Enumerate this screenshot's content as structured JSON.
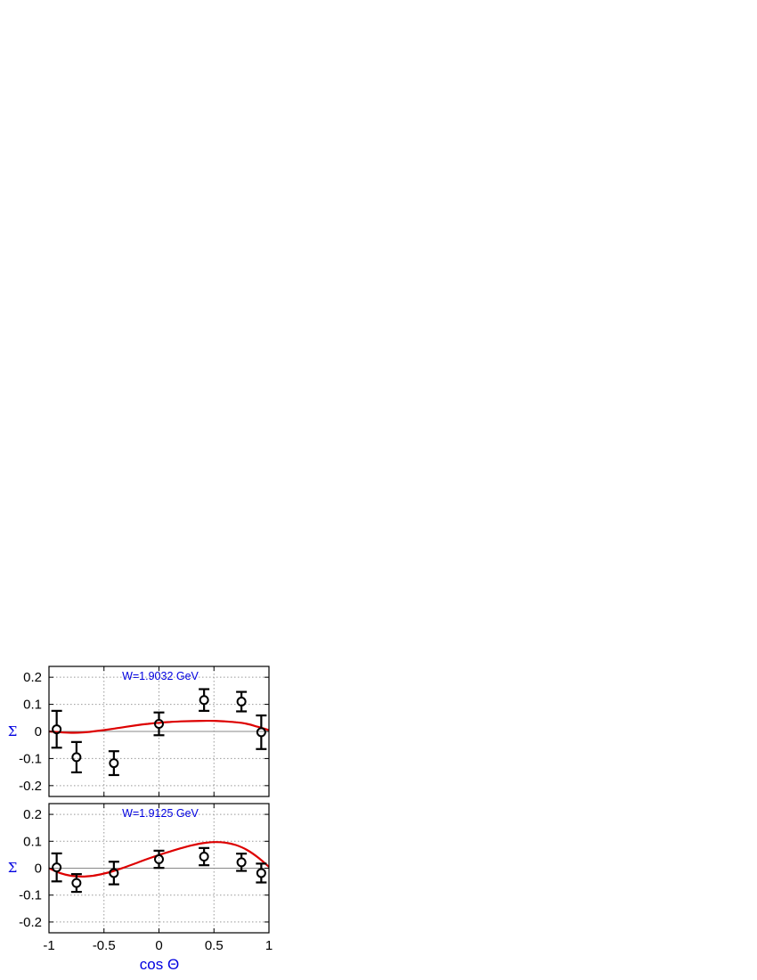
{
  "chart_data": [
    {
      "type": "scatter",
      "annotation": "W=1.9032 GeV",
      "xlabel": "cos Θ",
      "ylabel": "Σ",
      "xlim": [
        -1,
        1
      ],
      "ylim": [
        -0.24,
        0.24
      ],
      "xticks": [
        "-1",
        "-0.5",
        "0",
        "0.5",
        "1"
      ],
      "yticks": [
        "0.2",
        "0.1",
        "0",
        "-0.1",
        "-0.2"
      ],
      "grid": true,
      "series": [
        {
          "kind": "data-with-errors",
          "points": [
            {
              "x": -0.93,
              "y": 0.008,
              "err": 0.068
            },
            {
              "x": -0.75,
              "y": -0.095,
              "err": 0.056
            },
            {
              "x": -0.41,
              "y": -0.117,
              "err": 0.044
            },
            {
              "x": 0.0,
              "y": 0.028,
              "err": 0.042
            },
            {
              "x": 0.41,
              "y": 0.116,
              "err": 0.04
            },
            {
              "x": 0.75,
              "y": 0.11,
              "err": 0.036
            },
            {
              "x": 0.93,
              "y": -0.003,
              "err": 0.062
            }
          ]
        },
        {
          "kind": "fit-curve",
          "color": "#dd0000",
          "x": [
            -1,
            -0.9,
            -0.8,
            -0.7,
            -0.6,
            -0.5,
            -0.4,
            -0.3,
            -0.2,
            -0.1,
            0,
            0.1,
            0.2,
            0.3,
            0.4,
            0.5,
            0.6,
            0.7,
            0.8,
            0.9,
            1
          ],
          "y": [
            0.0,
            -0.003,
            -0.005,
            -0.004,
            0.0,
            0.005,
            0.011,
            0.017,
            0.023,
            0.028,
            0.032,
            0.035,
            0.037,
            0.038,
            0.039,
            0.039,
            0.037,
            0.034,
            0.028,
            0.017,
            0.005
          ]
        }
      ]
    },
    {
      "type": "scatter",
      "annotation": "W=1.9125 GeV",
      "xlabel": "cos Θ",
      "ylabel": "Σ",
      "xlim": [
        -1,
        1
      ],
      "ylim": [
        -0.24,
        0.24
      ],
      "xticks": [
        "-1",
        "-0.5",
        "0",
        "0.5",
        "1"
      ],
      "yticks": [
        "0.2",
        "0.1",
        "0",
        "-0.1",
        "-0.2"
      ],
      "grid": true,
      "series": [
        {
          "kind": "data-with-errors",
          "points": [
            {
              "x": -0.93,
              "y": 0.003,
              "err": 0.052
            },
            {
              "x": -0.75,
              "y": -0.055,
              "err": 0.033
            },
            {
              "x": -0.41,
              "y": -0.018,
              "err": 0.042
            },
            {
              "x": 0.0,
              "y": 0.033,
              "err": 0.032
            },
            {
              "x": 0.41,
              "y": 0.043,
              "err": 0.032
            },
            {
              "x": 0.75,
              "y": 0.022,
              "err": 0.032
            },
            {
              "x": 0.93,
              "y": -0.018,
              "err": 0.035
            }
          ]
        },
        {
          "kind": "fit-curve",
          "color": "#dd0000",
          "x": [
            -1,
            -0.9,
            -0.8,
            -0.7,
            -0.6,
            -0.5,
            -0.4,
            -0.3,
            -0.2,
            -0.1,
            0,
            0.1,
            0.2,
            0.3,
            0.4,
            0.5,
            0.6,
            0.7,
            0.8,
            0.9,
            1
          ],
          "y": [
            0.0,
            -0.018,
            -0.028,
            -0.031,
            -0.028,
            -0.02,
            -0.009,
            0.005,
            0.02,
            0.035,
            0.049,
            0.062,
            0.074,
            0.085,
            0.093,
            0.097,
            0.095,
            0.086,
            0.068,
            0.04,
            0.005
          ]
        }
      ]
    }
  ]
}
